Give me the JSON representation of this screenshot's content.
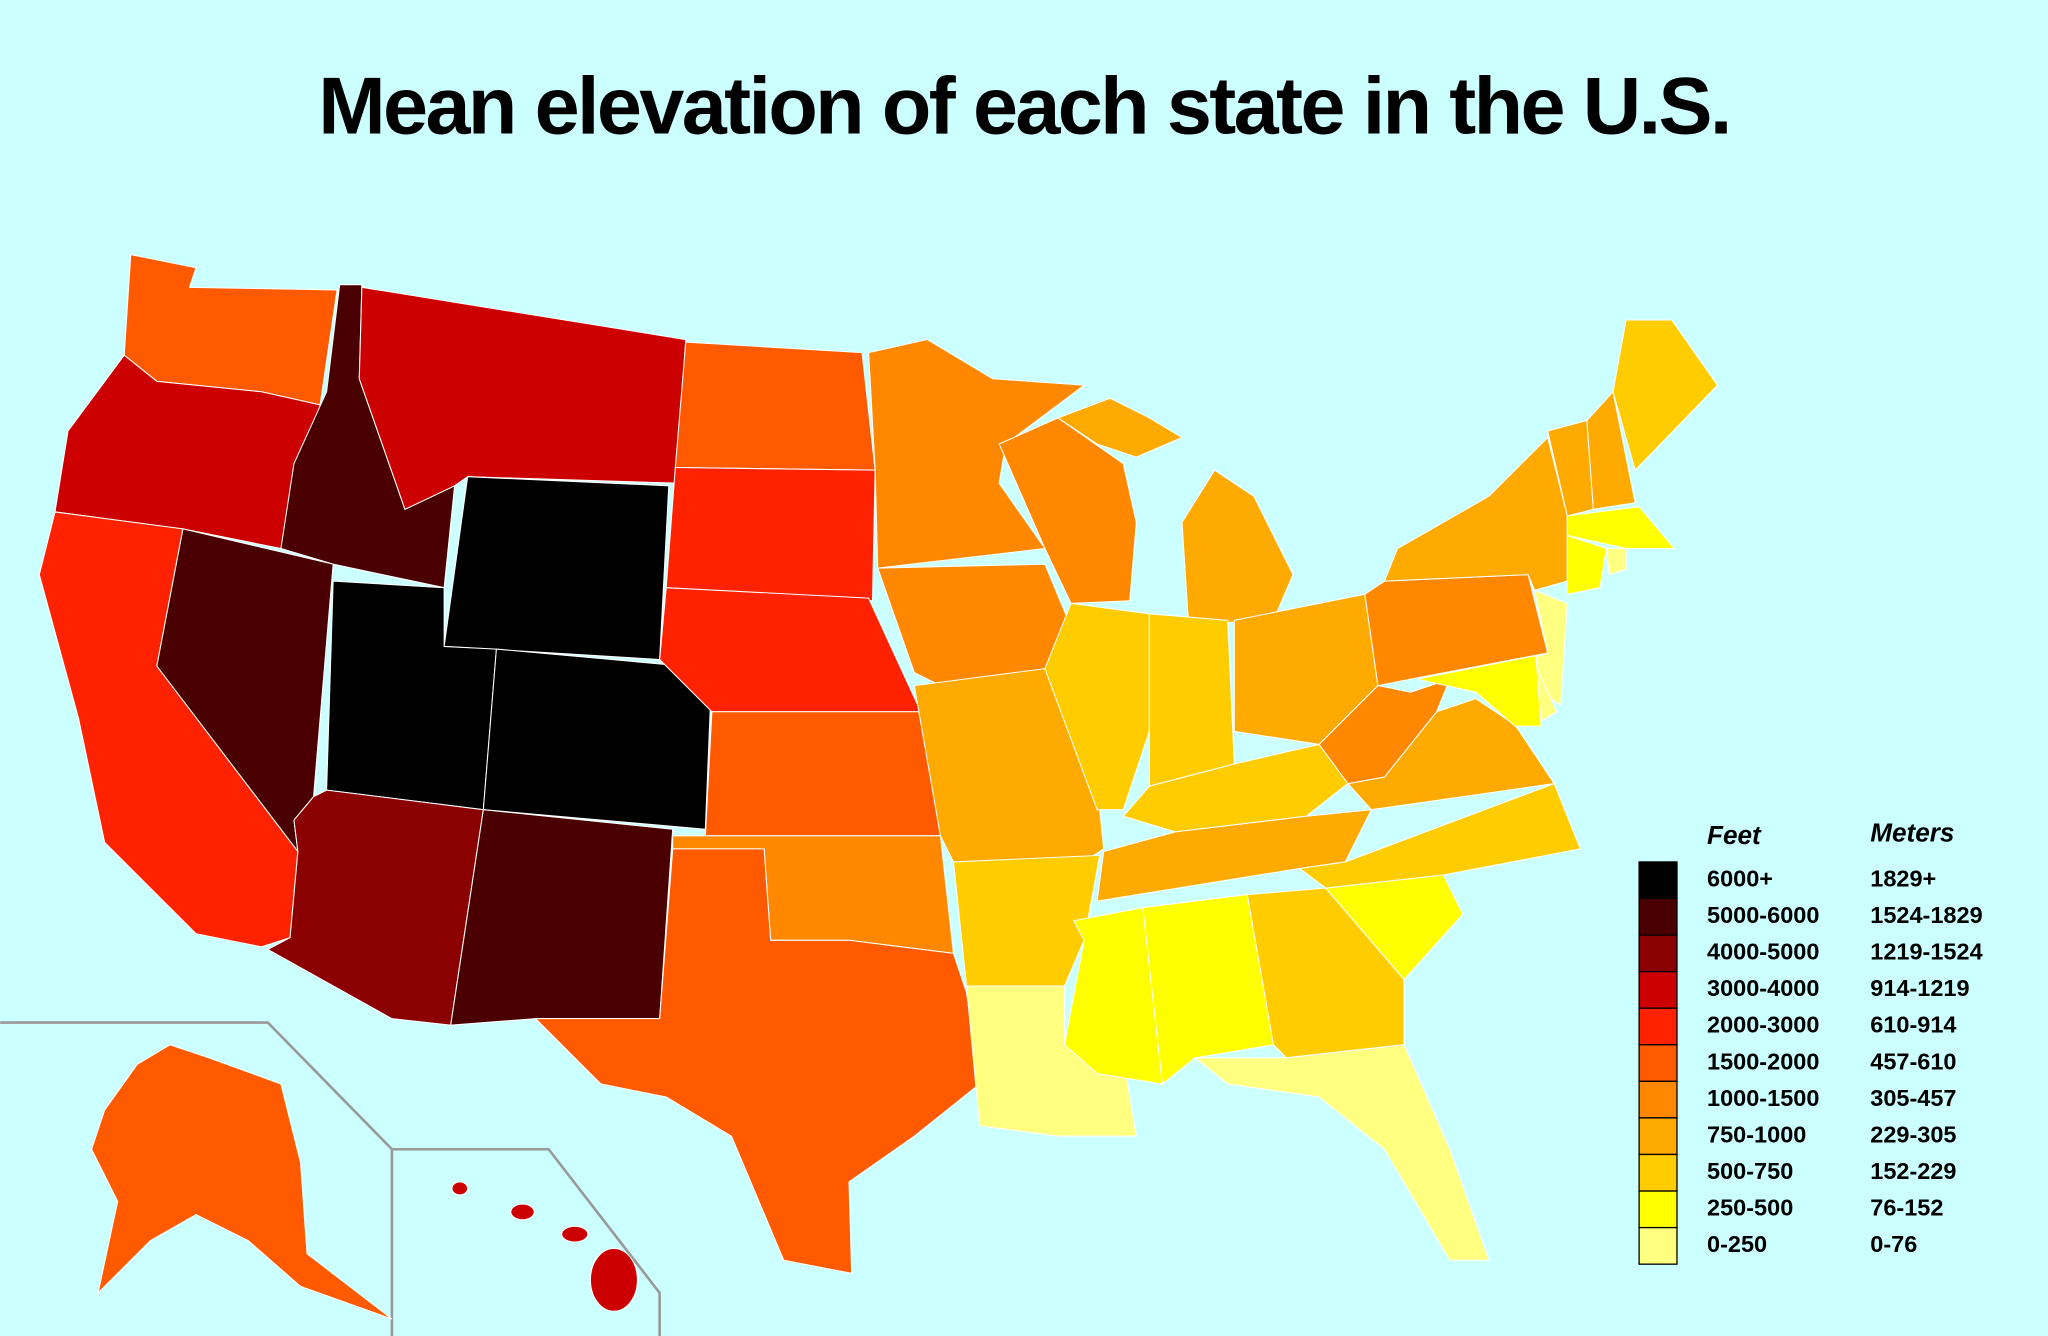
{
  "title": "Mean elevation of each state in the U.S.",
  "legend": {
    "headers": {
      "feet": "Feet",
      "meters": "Meters"
    },
    "items": [
      {
        "feet": "6000+",
        "meters": "1829+",
        "color": "#000000"
      },
      {
        "feet": "5000-6000",
        "meters": "1524-1829",
        "color": "#4a0000"
      },
      {
        "feet": "4000-5000",
        "meters": "1219-1524",
        "color": "#8b0000"
      },
      {
        "feet": "3000-4000",
        "meters": "914-1219",
        "color": "#cc0000"
      },
      {
        "feet": "2000-3000",
        "meters": "610-914",
        "color": "#ff2200"
      },
      {
        "feet": "1500-2000",
        "meters": "457-610",
        "color": "#ff5a00"
      },
      {
        "feet": "1000-1500",
        "meters": "305-457",
        "color": "#ff8800"
      },
      {
        "feet": "750-1000",
        "meters": "229-305",
        "color": "#ffaa00"
      },
      {
        "feet": "500-750",
        "meters": "152-229",
        "color": "#ffcc00"
      },
      {
        "feet": "250-500",
        "meters": "76-152",
        "color": "#ffff00"
      },
      {
        "feet": "0-250",
        "meters": "0-76",
        "color": "#ffff80"
      }
    ]
  }
}
